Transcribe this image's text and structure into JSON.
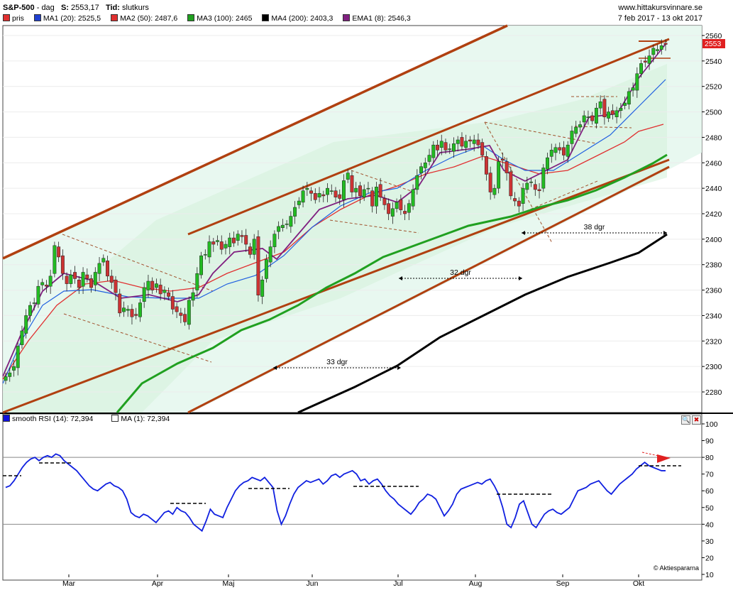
{
  "header": {
    "symbol": "S&P-500",
    "sep": "-",
    "interval": "dag",
    "s_label": "S:",
    "s_value": "2553,17",
    "tid_label": "Tid:",
    "tid_value": "slutkurs",
    "site": "www.hittakursvinnare.se",
    "date_range": "7 feb 2017 - 13 okt 2017"
  },
  "legend": [
    {
      "label": "pris",
      "color": "#e03030"
    },
    {
      "label": "MA1 (20): 2525,5",
      "color": "#2040d0"
    },
    {
      "label": "MA2 (50): 2487,6",
      "color": "#e03030"
    },
    {
      "label": "MA3 (100): 2465",
      "color": "#20a020"
    },
    {
      "label": "MA4 (200): 2403,3",
      "color": "#000000"
    },
    {
      "label": "EMA1 (8): 2546,3",
      "color": "#802080"
    }
  ],
  "rsi_legend": [
    {
      "label": "smooth RSI (14): 72,394",
      "color": "#1010e0"
    },
    {
      "label": "MA (1): 72,394",
      "color": "#ffffff"
    }
  ],
  "price_tag": "2553",
  "annotations": [
    "33 dgr",
    "32 dgr",
    "38 dgr"
  ],
  "copyright": "© Aktiespararna",
  "colors": {
    "up": "#22bb22",
    "down": "#cc3333",
    "channel": "#b04010",
    "ma20": "#2060e0",
    "ma50": "#e03030",
    "ma100": "#20a020",
    "ma200": "#000000",
    "ema8": "#802080",
    "rsi": "#1020e0"
  },
  "chart_data": [
    {
      "type": "candlestick",
      "title": "S&P-500",
      "x_tick_labels": [
        "Mar",
        "Apr",
        "Maj",
        "Jun",
        "Jul",
        "Aug",
        "Sep",
        "Okt"
      ],
      "ylim": [
        2265,
        2565
      ],
      "y_ticks": [
        2280,
        2300,
        2320,
        2340,
        2360,
        2380,
        2400,
        2420,
        2440,
        2460,
        2480,
        2500,
        2520,
        2540,
        2560
      ],
      "ohlc_close_approx": [
        2292,
        2295,
        2300,
        2316,
        2328,
        2340,
        2348,
        2350,
        2363,
        2366,
        2363,
        2371,
        2395,
        2386,
        2373,
        2365,
        2372,
        2369,
        2362,
        2374,
        2369,
        2362,
        2374,
        2381,
        2385,
        2371,
        2366,
        2358,
        2342,
        2346,
        2345,
        2339,
        2340,
        2350,
        2362,
        2367,
        2360,
        2365,
        2357,
        2360,
        2355,
        2345,
        2343,
        2340,
        2335,
        2352,
        2358,
        2373,
        2387,
        2388,
        2398,
        2396,
        2399,
        2392,
        2396,
        2401,
        2397,
        2404,
        2402,
        2396,
        2388,
        2400,
        2356,
        2368,
        2384,
        2394,
        2404,
        2410,
        2411,
        2412,
        2418,
        2425,
        2430,
        2438,
        2440,
        2436,
        2431,
        2436,
        2434,
        2440,
        2438,
        2433,
        2432,
        2446,
        2452,
        2437,
        2440,
        2434,
        2439,
        2440,
        2426,
        2441,
        2433,
        2427,
        2420,
        2424,
        2429,
        2423,
        2420,
        2428,
        2439,
        2450,
        2457,
        2460,
        2466,
        2474,
        2470,
        2477,
        2470,
        2471,
        2475,
        2478,
        2473,
        2477,
        2477,
        2478,
        2474,
        2466,
        2451,
        2437,
        2440,
        2461,
        2462,
        2452,
        2434,
        2430,
        2426,
        2440,
        2444,
        2445,
        2439,
        2438,
        2456,
        2464,
        2470,
        2472,
        2470,
        2466,
        2474,
        2485,
        2488,
        2490,
        2497,
        2496,
        2493,
        2503,
        2508,
        2496,
        2500,
        2498,
        2501,
        2503,
        2507,
        2516,
        2519,
        2530,
        2538,
        2539,
        2544,
        2550,
        2549,
        2552,
        2553
      ],
      "ma_final": {
        "MA1 (20)": 2525.5,
        "MA2 (50)": 2487.6,
        "MA3 (100)": 2465,
        "MA4 (200)": 2403.3,
        "EMA1 (8)": 2546.3
      }
    },
    {
      "type": "line",
      "title": "smooth RSI (14)",
      "ylim": [
        10,
        100
      ],
      "y_ticks": [
        10,
        20,
        30,
        40,
        50,
        60,
        70,
        80,
        90,
        100
      ],
      "series": [
        {
          "name": "smooth RSI (14)",
          "values": [
            62,
            63,
            66,
            70,
            74,
            77,
            79,
            80,
            78,
            80,
            81,
            80,
            82,
            81,
            78,
            76,
            74,
            72,
            69,
            66,
            63,
            61,
            60,
            62,
            64,
            65,
            63,
            62,
            60,
            55,
            47,
            45,
            44,
            46,
            45,
            43,
            41,
            44,
            47,
            48,
            46,
            50,
            48,
            47,
            44,
            40,
            38,
            36,
            42,
            49,
            46,
            45,
            44,
            50,
            55,
            60,
            63,
            65,
            66,
            68,
            67,
            66,
            68,
            65,
            62,
            48,
            40,
            45,
            52,
            58,
            62,
            64,
            66,
            65,
            66,
            67,
            64,
            66,
            69,
            70,
            68,
            70,
            71,
            72,
            70,
            66,
            67,
            64,
            66,
            67,
            64,
            60,
            57,
            55,
            52,
            50,
            48,
            46,
            49,
            53,
            55,
            58,
            57,
            55,
            50,
            45,
            48,
            52,
            58,
            61,
            62,
            63,
            64,
            65,
            64,
            66,
            67,
            63,
            58,
            50,
            40,
            38,
            44,
            52,
            54,
            47,
            40,
            38,
            42,
            46,
            48,
            49,
            47,
            46,
            48,
            50,
            55,
            60,
            61,
            62,
            64,
            65,
            66,
            63,
            60,
            58,
            61,
            64,
            66,
            68,
            70,
            73,
            75,
            77,
            75,
            74,
            73,
            72,
            72
          ]
        }
      ]
    }
  ]
}
